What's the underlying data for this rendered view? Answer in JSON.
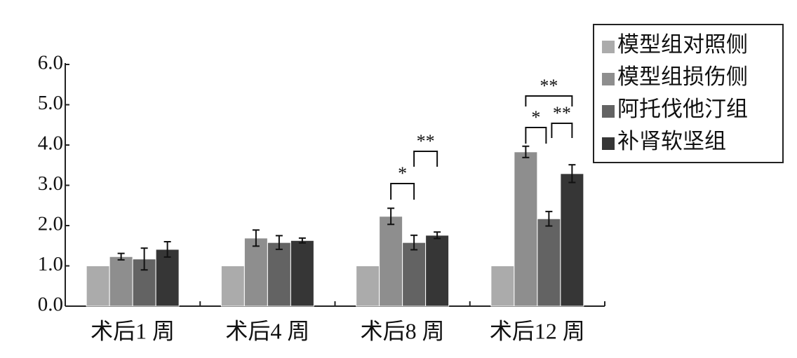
{
  "chart_data": {
    "type": "bar",
    "categories": [
      "术后1 周",
      "术后4 周",
      "术后8 周",
      "术后12 周"
    ],
    "series": [
      {
        "name": "模型组对照侧",
        "color": "#ababab",
        "values": [
          1.0,
          1.0,
          1.0,
          1.0
        ],
        "errors": [
          null,
          null,
          null,
          null
        ]
      },
      {
        "name": "模型组损伤侧",
        "color": "#8e8e8e",
        "values": [
          1.23,
          1.69,
          2.23,
          3.83
        ],
        "errors": [
          0.08,
          0.2,
          0.2,
          0.14
        ]
      },
      {
        "name": "阿托伐他汀组",
        "color": "#636363",
        "values": [
          1.17,
          1.58,
          1.58,
          2.17
        ],
        "errors": [
          0.27,
          0.17,
          0.18,
          0.18
        ]
      },
      {
        "name": "补肾软坚组",
        "color": "#363636",
        "values": [
          1.41,
          1.63,
          1.76,
          3.29
        ],
        "errors": [
          0.19,
          0.06,
          0.08,
          0.22
        ]
      }
    ],
    "ylim": [
      0,
      6
    ],
    "yticks": [
      {
        "value": 0,
        "label": "0.0"
      },
      {
        "value": 1,
        "label": "1.0"
      },
      {
        "value": 2,
        "label": "2.0"
      },
      {
        "value": 3,
        "label": "3.0"
      },
      {
        "value": 4,
        "label": "4.0"
      },
      {
        "value": 5,
        "label": "5.0"
      },
      {
        "value": 6,
        "label": "6.0"
      }
    ],
    "annotations": [
      "*",
      "**",
      "**",
      "*",
      "**"
    ]
  }
}
